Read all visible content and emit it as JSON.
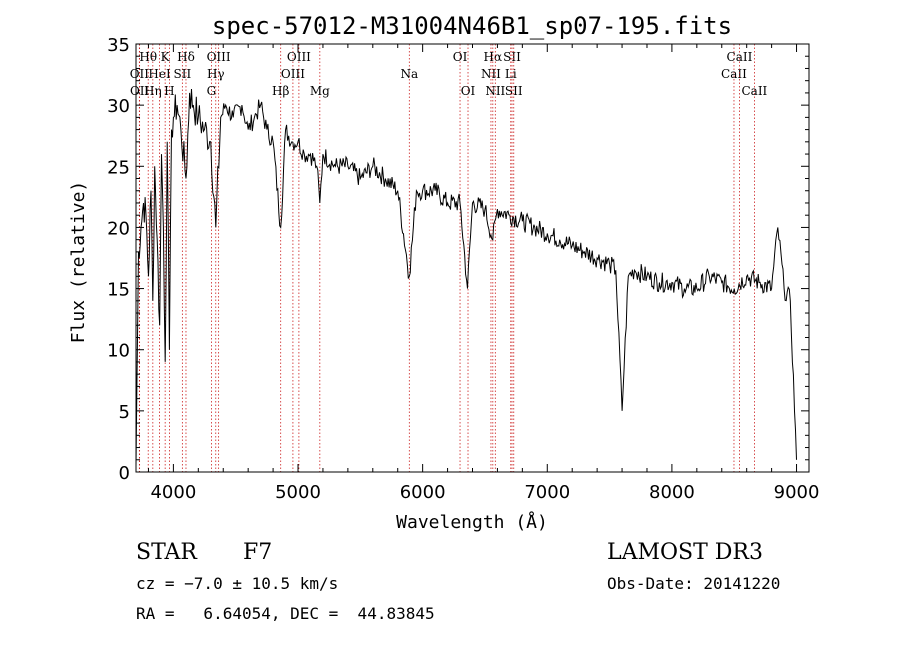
{
  "chart_data": {
    "type": "line",
    "title": "spec-57012-M31004N46B1_sp07-195.fits",
    "xlabel": "Wavelength (Å)",
    "ylabel": "Flux (relative)",
    "xlim": [
      3700,
      9100
    ],
    "ylim": [
      0,
      35
    ],
    "xticks": [
      4000,
      5000,
      6000,
      7000,
      8000,
      9000
    ],
    "yticks": [
      0,
      5,
      10,
      15,
      20,
      25,
      30,
      35
    ],
    "grid": false,
    "series": [
      {
        "name": "spectrum",
        "x": [
          3700,
          3720,
          3740,
          3760,
          3780,
          3800,
          3820,
          3835,
          3850,
          3870,
          3890,
          3905,
          3920,
          3934,
          3950,
          3968,
          3985,
          4000,
          4030,
          4060,
          4101,
          4130,
          4160,
          4200,
          4250,
          4300,
          4340,
          4380,
          4420,
          4480,
          4550,
          4600,
          4650,
          4700,
          4750,
          4800,
          4861,
          4900,
          4950,
          5000,
          5050,
          5100,
          5150,
          5175,
          5200,
          5300,
          5400,
          5500,
          5600,
          5700,
          5800,
          5893,
          5950,
          6000,
          6100,
          6200,
          6300,
          6360,
          6400,
          6500,
          6563,
          6600,
          6700,
          6800,
          6900,
          7000,
          7100,
          7200,
          7300,
          7400,
          7500,
          7550,
          7600,
          7650,
          7700,
          7800,
          7900,
          8000,
          8100,
          8200,
          8300,
          8400,
          8500,
          8600,
          8700,
          8800,
          8850,
          8900,
          8950,
          9000
        ],
        "values": [
          0.5,
          18,
          20,
          22,
          21,
          16,
          23,
          14,
          25,
          19,
          12,
          26,
          20,
          9,
          27,
          10,
          28,
          29,
          30,
          28,
          24,
          31,
          30,
          29,
          28,
          27,
          20,
          29,
          30,
          29,
          30,
          28,
          29,
          30,
          28,
          27,
          20,
          28,
          27,
          27,
          26,
          26,
          25,
          22,
          26,
          25,
          25,
          24,
          25,
          24,
          23,
          16,
          23,
          23,
          23,
          22,
          22,
          15,
          22,
          21.5,
          19,
          21.5,
          21,
          20.5,
          20,
          19.5,
          19,
          18.5,
          18,
          17.5,
          17,
          16.5,
          5,
          16,
          16.5,
          16,
          15.5,
          15.5,
          15,
          15,
          16,
          15.5,
          15,
          16,
          15.5,
          15,
          20,
          15,
          14,
          1
        ]
      }
    ],
    "line_markers": [
      {
        "label": "Hθ",
        "x": 3798,
        "tier": 1
      },
      {
        "label": "OII",
        "x": 3727,
        "tier": 2
      },
      {
        "label": "OII",
        "x": 3729,
        "tier": 3
      },
      {
        "label": "Hη",
        "x": 3835,
        "tier": 3
      },
      {
        "label": "HeI",
        "x": 3889,
        "tier": 2
      },
      {
        "label": "K",
        "x": 3934,
        "tier": 1
      },
      {
        "label": "H",
        "x": 3968,
        "tier": 3
      },
      {
        "label": "SII",
        "x": 4072,
        "tier": 2
      },
      {
        "label": "Hδ",
        "x": 4101,
        "tier": 1
      },
      {
        "label": "G",
        "x": 4305,
        "tier": 3
      },
      {
        "label": "Hγ",
        "x": 4340,
        "tier": 2
      },
      {
        "label": "OIII",
        "x": 4363,
        "tier": 1
      },
      {
        "label": "Hβ",
        "x": 4861,
        "tier": 3
      },
      {
        "label": "OIII",
        "x": 4959,
        "tier": 2
      },
      {
        "label": "OIII",
        "x": 5007,
        "tier": 1
      },
      {
        "label": "Mg",
        "x": 5175,
        "tier": 3
      },
      {
        "label": "Na",
        "x": 5893,
        "tier": 2
      },
      {
        "label": "OI",
        "x": 6300,
        "tier": 1
      },
      {
        "label": "OI",
        "x": 6364,
        "tier": 3
      },
      {
        "label": "NII",
        "x": 6548,
        "tier": 2
      },
      {
        "label": "Hα",
        "x": 6563,
        "tier": 1
      },
      {
        "label": "NII",
        "x": 6583,
        "tier": 3
      },
      {
        "label": "SII",
        "x": 6717,
        "tier": 1
      },
      {
        "label": "SII",
        "x": 6731,
        "tier": 3
      },
      {
        "label": "Li",
        "x": 6707,
        "tier": 2
      },
      {
        "label": "CaII",
        "x": 8498,
        "tier": 2
      },
      {
        "label": "CaII",
        "x": 8542,
        "tier": 1
      },
      {
        "label": "CaII",
        "x": 8662,
        "tier": 3
      }
    ]
  },
  "info": {
    "object_class": "STAR",
    "subclass": "F7",
    "survey": "LAMOST DR3",
    "redshift_line": "cz = −7.0 ± 10.5 km/s",
    "obs_date": "Obs-Date: 20141220",
    "coords_line": "RA =   6.64054, DEC =  44.83845"
  },
  "colors": {
    "axis": "#000000",
    "line": "#000000",
    "marker": "#cc2222"
  }
}
